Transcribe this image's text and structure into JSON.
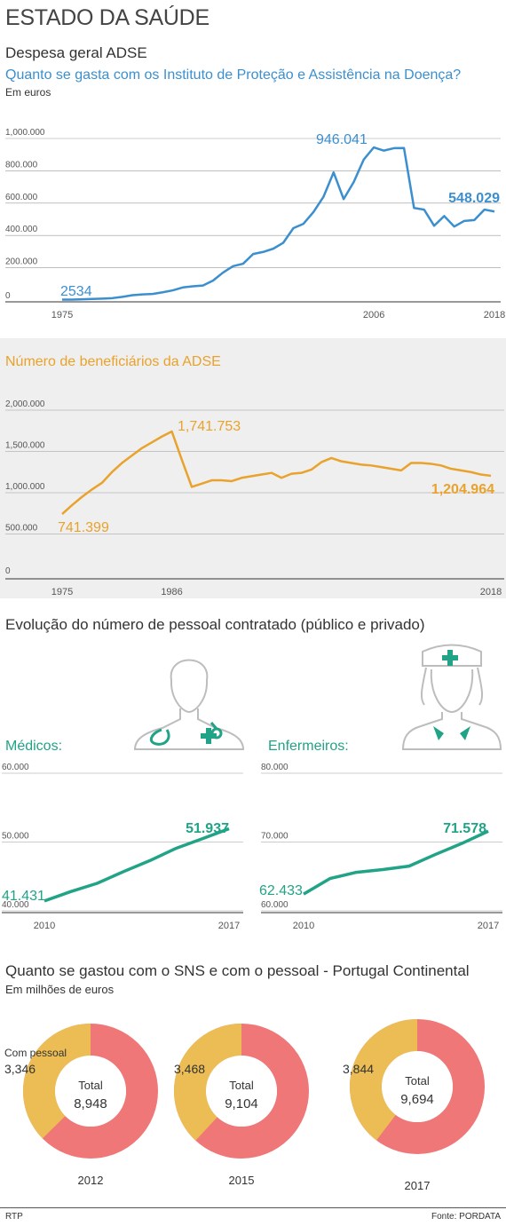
{
  "title": "ESTADO DA SAÚDE",
  "footer": {
    "left": "RTP",
    "right": "Fonte: PORDATA"
  },
  "colors": {
    "blue": "#3b8fcf",
    "orange": "#e9a22b",
    "teal": "#20a386",
    "salmon": "#ef7777",
    "gold": "#ebbd54",
    "grid": "#999999"
  },
  "section1": {
    "title": "Despesa geral ADSE",
    "question": "Quanto se gasta com os Instituto de Proteção e Assistência na Doença?",
    "unit": "Em euros"
  },
  "section2": {
    "title": "Número de beneficiários da ADSE"
  },
  "section3": {
    "title": "Evolução do número de pessoal contratado (público e privado)",
    "medicos_label": "Médicos:",
    "enfermeiros_label": "Enfermeiros:"
  },
  "section4": {
    "title": "Quanto se gastou com o SNS e com o pessoal - Portugal Continental",
    "unit": "Em milhões de euros",
    "legend_pessoal": "Com pessoal",
    "total_label": "Total"
  },
  "chart_data": [
    {
      "id": "despesa",
      "type": "line",
      "x": [
        1975,
        1976,
        1977,
        1978,
        1979,
        1980,
        1981,
        1982,
        1983,
        1984,
        1985,
        1986,
        1987,
        1988,
        1989,
        1990,
        1991,
        1992,
        1993,
        1994,
        1995,
        1996,
        1997,
        1998,
        1999,
        2000,
        2001,
        2002,
        2003,
        2004,
        2005,
        2006,
        2007,
        2008,
        2009,
        2010,
        2011,
        2012,
        2013,
        2014,
        2015,
        2016,
        2017,
        2018
      ],
      "values": [
        2534,
        3000,
        5000,
        7000,
        9000,
        12000,
        20000,
        30000,
        35000,
        38000,
        48000,
        60000,
        78000,
        85000,
        90000,
        120000,
        170000,
        210000,
        225000,
        285000,
        298000,
        318000,
        355000,
        445000,
        472000,
        545000,
        640000,
        790000,
        625000,
        730000,
        870000,
        945000,
        925000,
        940000,
        941000,
        570000,
        560000,
        460000,
        520000,
        455000,
        490000,
        495000,
        560000,
        548029
      ],
      "ylim": [
        0,
        1000000
      ],
      "yticks": [
        0,
        200000,
        400000,
        600000,
        800000,
        1000000
      ],
      "ytick_labels": [
        "0",
        "200.000",
        "400.000",
        "600.000",
        "800.000",
        "1,000.000"
      ],
      "xtick_labels": [
        "1975",
        "2006",
        "2018"
      ],
      "labels": {
        "first": "2534",
        "peak": "946.041",
        "last": "548.029"
      }
    },
    {
      "id": "beneficiarios",
      "type": "line",
      "x": [
        1975,
        1976,
        1977,
        1978,
        1979,
        1980,
        1981,
        1982,
        1983,
        1984,
        1985,
        1986,
        1987,
        1988,
        1989,
        1990,
        1991,
        1992,
        1993,
        1994,
        1995,
        1996,
        1997,
        1998,
        1999,
        2000,
        2001,
        2002,
        2003,
        2004,
        2005,
        2006,
        2007,
        2008,
        2009,
        2010,
        2011,
        2012,
        2013,
        2014,
        2015,
        2016,
        2017,
        2018
      ],
      "values": [
        741399,
        850000,
        950000,
        1040000,
        1120000,
        1250000,
        1360000,
        1450000,
        1540000,
        1610000,
        1680000,
        1741753,
        1400000,
        1070000,
        1110000,
        1150000,
        1150000,
        1140000,
        1180000,
        1200000,
        1220000,
        1240000,
        1180000,
        1230000,
        1240000,
        1280000,
        1370000,
        1420000,
        1380000,
        1360000,
        1340000,
        1330000,
        1310000,
        1290000,
        1270000,
        1360000,
        1360000,
        1350000,
        1330000,
        1290000,
        1270000,
        1250000,
        1220000,
        1204964
      ],
      "ylim": [
        0,
        2000000
      ],
      "yticks": [
        0,
        500000,
        1000000,
        1500000,
        2000000
      ],
      "ytick_labels": [
        "0",
        "500.000",
        "1,000.000",
        "1,500.000",
        "2,000.000"
      ],
      "xtick_labels": [
        "1975",
        "1986",
        "2018"
      ],
      "labels": {
        "first": "741.399",
        "peak": "1,741.753",
        "last": "1,204.964"
      }
    },
    {
      "id": "medicos",
      "type": "line",
      "x": [
        2010,
        2011,
        2012,
        2013,
        2014,
        2015,
        2016,
        2017
      ],
      "values": [
        41431,
        42800,
        44000,
        45700,
        47300,
        49100,
        50500,
        51937
      ],
      "ylim": [
        40000,
        60000
      ],
      "ytick_labels": [
        "40.000",
        "50.000",
        "60.000"
      ],
      "xtick_labels": [
        "2010",
        "2017"
      ],
      "labels": {
        "first": "41.431",
        "last": "51.937"
      }
    },
    {
      "id": "enfermeiros",
      "type": "line",
      "x": [
        2010,
        2011,
        2012,
        2013,
        2014,
        2015,
        2016,
        2017
      ],
      "values": [
        62433,
        64700,
        65600,
        66000,
        66500,
        68200,
        69800,
        71578
      ],
      "ylim": [
        60000,
        80000
      ],
      "ytick_labels": [
        "60.000",
        "70.000",
        "80.000"
      ],
      "xtick_labels": [
        "2010",
        "2017"
      ],
      "labels": {
        "first": "62.433",
        "last": "71.578"
      }
    },
    {
      "id": "sns",
      "type": "pie",
      "donuts": [
        {
          "year": "2012",
          "pessoal": 3346,
          "total": 8948,
          "pessoal_label": "3,346",
          "total_label": "8,948"
        },
        {
          "year": "2015",
          "pessoal": 3468,
          "total": 9104,
          "pessoal_label": "3,468",
          "total_label": "9,104"
        },
        {
          "year": "2017",
          "pessoal": 3844,
          "total": 9694,
          "pessoal_label": "3,844",
          "total_label": "9,694"
        }
      ]
    }
  ]
}
